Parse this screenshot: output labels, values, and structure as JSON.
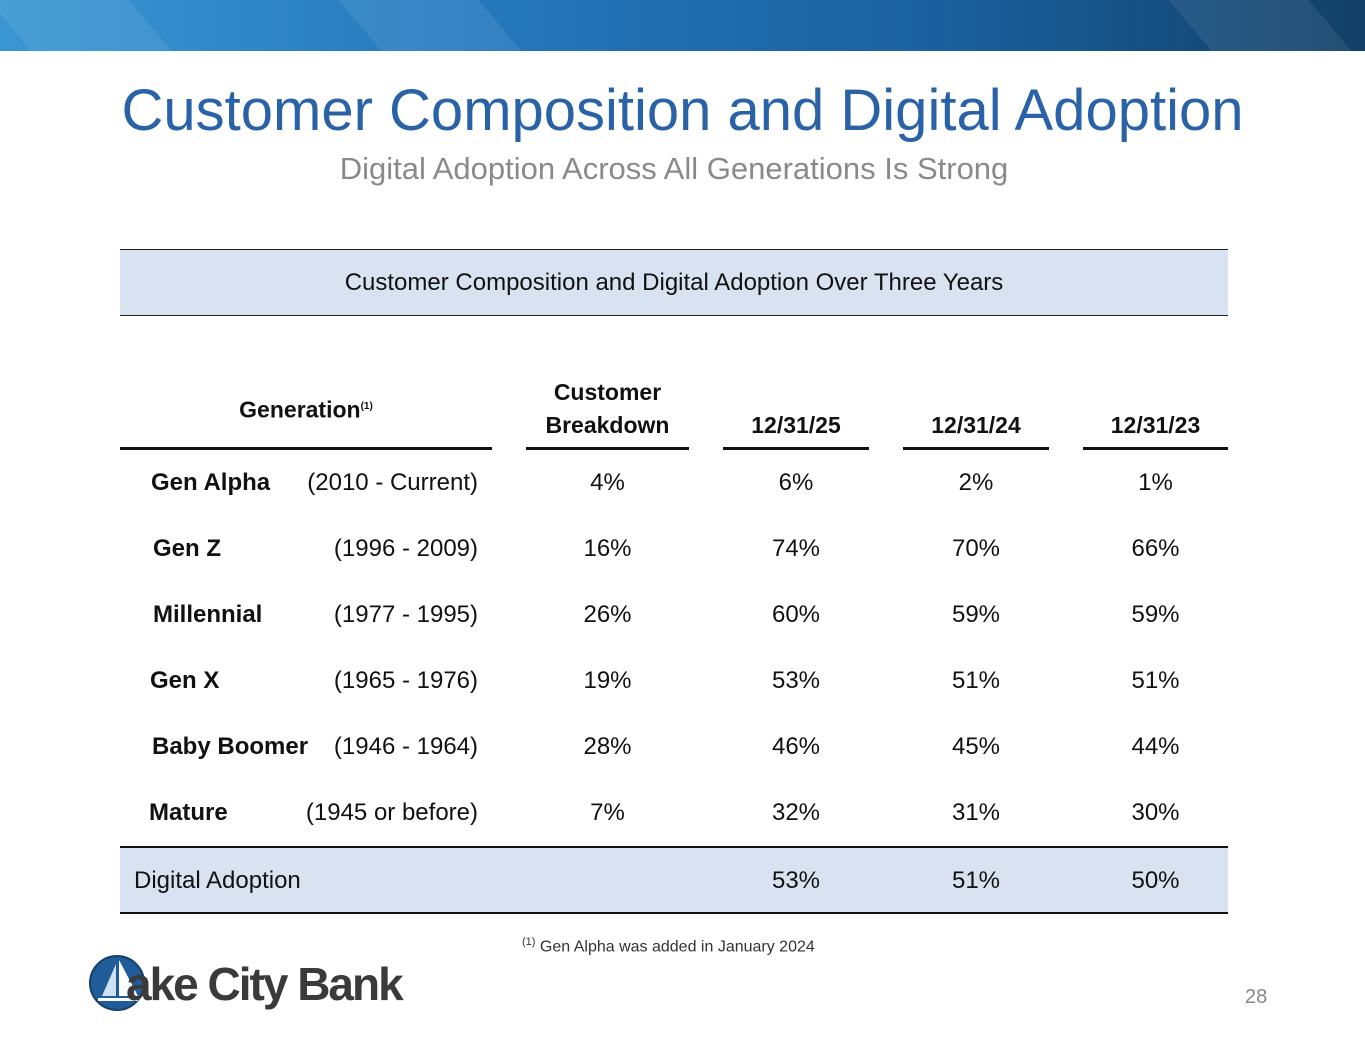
{
  "slide": {
    "title": "Customer Composition and Digital Adoption",
    "subtitle": "Digital Adoption Across All Generations Is Strong",
    "page_number": "28"
  },
  "table": {
    "banner": "Customer Composition and Digital Adoption Over Three Years",
    "headers": {
      "generation": "Generation",
      "generation_note": "(1)",
      "breakdown_line1": "Customer",
      "breakdown_line2": "Breakdown",
      "col1": "12/31/25",
      "col2": "12/31/24",
      "col3": "12/31/23"
    },
    "rows": [
      {
        "name": "Gen Alpha",
        "years": "(2010 - Current)",
        "breakdown": "4%",
        "v25": "6%",
        "v24": "2%",
        "v23": "1%"
      },
      {
        "name": "Gen Z",
        "years": "(1996 - 2009)",
        "breakdown": "16%",
        "v25": "74%",
        "v24": "70%",
        "v23": "66%"
      },
      {
        "name": "Millennial",
        "years": "(1977 - 1995)",
        "breakdown": "26%",
        "v25": "60%",
        "v24": "59%",
        "v23": "59%"
      },
      {
        "name": "Gen X",
        "years": "(1965 - 1976)",
        "breakdown": "19%",
        "v25": "53%",
        "v24": "51%",
        "v23": "51%"
      },
      {
        "name": "Baby Boomer",
        "years": "(1946 - 1964)",
        "breakdown": "28%",
        "v25": "46%",
        "v24": "45%",
        "v23": "44%"
      },
      {
        "name": "Mature",
        "years": "(1945 or before)",
        "breakdown": "7%",
        "v25": "32%",
        "v24": "31%",
        "v23": "30%"
      }
    ],
    "total": {
      "label": "Digital Adoption",
      "v25": "53%",
      "v24": "51%",
      "v23": "50%"
    }
  },
  "footnote": {
    "marker": "(1)",
    "text": "Gen Alpha was added in January 2024"
  },
  "logo": {
    "text": "Lake City Bank",
    "visible_text": "ake City Bank"
  },
  "colors": {
    "title": "#2a62a8",
    "banner_fill": "#d9e2f1",
    "logo_blue": "#1f5c99"
  }
}
